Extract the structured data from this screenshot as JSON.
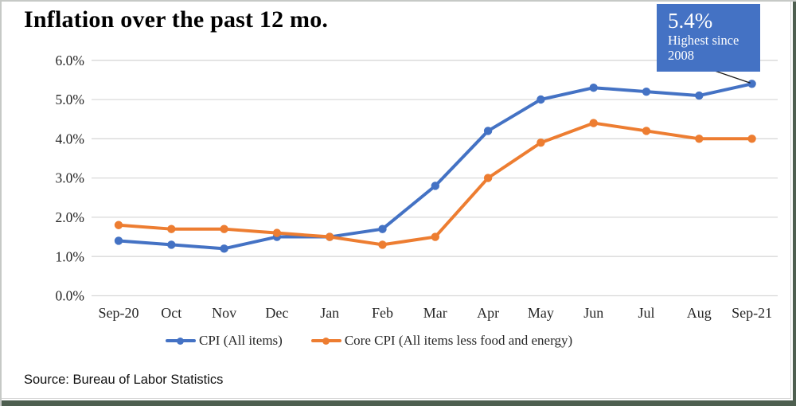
{
  "title": "Inflation over the past 12 mo.",
  "source_note": "Source: Bureau of Labor Statistics",
  "callout": {
    "value": "5.4%",
    "line1": "Highest since",
    "line2": "2008"
  },
  "colors": {
    "cpi_line": "#4472C4",
    "core_cpi_line": "#ED7D31",
    "callout_bg": "#4472C4",
    "callout_text": "#ffffff",
    "gridline": "#d9d9d9",
    "axis_text": "#262626",
    "connector": "#1a1a1a",
    "window_edge_green": "#4e5f50"
  },
  "chart_data": {
    "type": "line",
    "title": "Inflation over the past 12 mo.",
    "categories": [
      "Sep-20",
      "Oct",
      "Nov",
      "Dec",
      "Jan",
      "Feb",
      "Mar",
      "Apr",
      "May",
      "Jun",
      "Jul",
      "Aug",
      "Sep-21"
    ],
    "series": [
      {
        "name": "CPI (All items)",
        "color": "#4472C4",
        "values": [
          1.4,
          1.3,
          1.2,
          1.5,
          1.5,
          1.7,
          2.8,
          4.2,
          5.0,
          5.3,
          5.2,
          5.1,
          5.4
        ]
      },
      {
        "name": "Core CPI (All items less food and energy)",
        "color": "#ED7D31",
        "values": [
          1.8,
          1.7,
          1.7,
          1.6,
          1.5,
          1.3,
          1.5,
          3.0,
          3.9,
          4.4,
          4.2,
          4.0,
          4.0
        ]
      }
    ],
    "ylim": [
      0,
      6
    ],
    "ytick_values": [
      0,
      1,
      2,
      3,
      4,
      5,
      6
    ],
    "ytick_labels": [
      "0.0%",
      "1.0%",
      "2.0%",
      "3.0%",
      "4.0%",
      "5.0%",
      "6.0%"
    ],
    "grid": true,
    "legend_position": "bottom",
    "annotation": {
      "target_category": "Sep-21",
      "target_value": 5.4,
      "text": "5.4% Highest since 2008"
    }
  }
}
